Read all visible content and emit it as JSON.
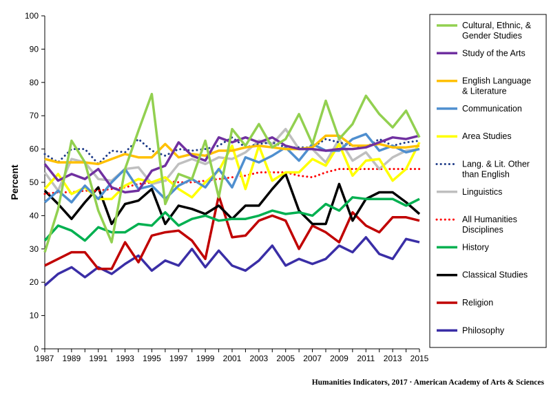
{
  "footer": "Humanities Indicators, 2017 · American Academy of Arts & Sciences",
  "chart_data": {
    "type": "line",
    "title": "",
    "xlabel": "",
    "ylabel": "Percent",
    "ylim": [
      0,
      100
    ],
    "yticks": [
      0,
      10,
      20,
      30,
      40,
      50,
      60,
      70,
      80,
      90,
      100
    ],
    "xtick_labels": [
      "1987",
      "1989",
      "1991",
      "1993",
      "1995",
      "1997",
      "1999",
      "2001",
      "2003",
      "2005",
      "2007",
      "2009",
      "2011",
      "2013",
      "2015"
    ],
    "grid": false,
    "legend_position": "right",
    "x": [
      1987,
      1988,
      1989,
      1990,
      1991,
      1992,
      1993,
      1994,
      1995,
      1996,
      1997,
      1998,
      1999,
      2000,
      2001,
      2002,
      2003,
      2004,
      2005,
      2006,
      2007,
      2008,
      2009,
      2010,
      2011,
      2012,
      2013,
      2014,
      2015
    ],
    "series": [
      {
        "name": "Cultural, Ethnic, & Gender Studies",
        "label_lines": [
          "Cultural, Ethnic, &",
          "Gender Studies"
        ],
        "color": "#92d050",
        "style": "solid",
        "values": [
          29,
          42,
          62.5,
          56,
          41.5,
          32,
          54,
          65.5,
          76.5,
          43.5,
          52.5,
          51,
          62.5,
          45.5,
          66,
          61,
          67.5,
          60.5,
          63,
          70.5,
          61.5,
          74.5,
          63,
          67.5,
          76,
          70.5,
          66.5,
          71.5,
          63.5
        ]
      },
      {
        "name": "Study of the Arts",
        "label_lines": [
          "Study of the Arts"
        ],
        "color": "#7030a0",
        "style": "solid",
        "values": [
          55.5,
          50.5,
          52.5,
          51,
          54,
          48.5,
          47,
          47.5,
          53.5,
          55,
          62,
          58,
          56.5,
          63.5,
          62,
          63.5,
          62,
          63.5,
          61,
          60,
          60,
          59.5,
          60,
          60,
          60.5,
          62,
          63.5,
          63,
          64
        ]
      },
      {
        "name": "English Language & Literature",
        "label_lines": [
          "English Language",
          "& Literature"
        ],
        "color": "#ffc000",
        "style": "solid",
        "values": [
          57,
          56,
          56,
          56,
          55.5,
          57,
          58.5,
          57.5,
          57.5,
          61.5,
          57.5,
          58.5,
          58,
          59.5,
          59.5,
          60.5,
          61,
          60.5,
          60,
          60,
          60.5,
          64,
          64,
          61,
          61,
          61.5,
          60.5,
          60.5,
          61
        ]
      },
      {
        "name": "Communication",
        "label_lines": [
          "Communication"
        ],
        "color": "#4f8fcf",
        "style": "solid",
        "values": [
          44,
          47.5,
          44,
          49,
          45,
          50,
          54,
          48,
          49,
          45,
          49,
          51,
          48.5,
          54,
          48.5,
          57.5,
          56,
          58,
          60.5,
          56.5,
          61.5,
          59.5,
          59.5,
          63,
          64.5,
          59.5,
          61,
          59,
          60
        ]
      },
      {
        "name": "Area Studies",
        "label_lines": [
          "Area Studies"
        ],
        "color": "#ffff00",
        "style": "solid",
        "values": [
          48,
          52.5,
          46.5,
          48.5,
          45,
          45,
          49,
          51,
          50,
          51.5,
          48,
          45.5,
          50,
          53.5,
          61,
          48,
          61,
          50.5,
          53,
          53,
          57,
          55,
          61.5,
          52,
          56.5,
          57,
          50.5,
          54,
          62
        ]
      },
      {
        "name": "Lang. & Lit. Other than English",
        "label_lines": [
          "Lang. & Lit. Other",
          "than English"
        ],
        "color": "#1f3c88",
        "style": "dotted",
        "values": [
          58.5,
          56,
          60,
          60,
          55.5,
          59.5,
          59,
          63,
          59.5,
          58,
          60,
          59.5,
          60,
          61,
          63.5,
          60.5,
          61.5,
          62,
          60.5,
          60.5,
          60.5,
          63,
          62,
          61,
          60.5,
          63,
          61,
          62,
          62.5
        ]
      },
      {
        "name": "Linguistics",
        "label_lines": [
          "Linguistics"
        ],
        "color": "#bfbfbf",
        "style": "solid",
        "values": [
          53,
          47.5,
          57,
          56,
          51,
          50.5,
          54,
          54.5,
          49.5,
          50.5,
          55.5,
          57,
          55.5,
          57.5,
          57,
          59,
          62.5,
          61.5,
          66,
          60,
          60,
          56,
          63,
          56.5,
          59,
          54,
          57.5,
          59.5,
          60
        ]
      },
      {
        "name": "All Humanities Disciplines",
        "label_lines": [
          "All Humanities",
          "Disciplines"
        ],
        "color": "#ff0000",
        "style": "dotted",
        "values": [
          46.5,
          47,
          47,
          47.5,
          47.5,
          48,
          48.5,
          49.5,
          50,
          50.5,
          50,
          50,
          50.5,
          51,
          51.5,
          52,
          53,
          53,
          53,
          52,
          51.5,
          53,
          54,
          54,
          54,
          54,
          54,
          54,
          54
        ]
      },
      {
        "name": "History",
        "label_lines": [
          "History"
        ],
        "color": "#00b050",
        "style": "solid",
        "values": [
          32.5,
          37,
          35.5,
          32.5,
          36.5,
          35,
          35,
          37.5,
          37,
          41,
          37,
          39,
          40,
          38.5,
          39,
          39,
          40,
          41.5,
          40.5,
          41,
          40,
          43.5,
          41.5,
          45.5,
          45,
          45,
          45,
          43,
          45
        ]
      },
      {
        "name": "Classical Studies",
        "label_lines": [
          "Classical Studies"
        ],
        "color": "#000000",
        "style": "solid",
        "values": [
          47.5,
          43.5,
          39,
          44,
          48.5,
          37.5,
          43.5,
          44.5,
          48,
          37.5,
          43,
          42,
          40.5,
          43,
          39,
          43,
          43,
          48,
          52.5,
          41.5,
          37.5,
          37.5,
          49.5,
          38.5,
          45,
          47,
          47,
          44,
          40.5
        ]
      },
      {
        "name": "Religion",
        "label_lines": [
          "Religion"
        ],
        "color": "#c00000",
        "style": "solid",
        "values": [
          25,
          27,
          29,
          29,
          24,
          24,
          32,
          26,
          34,
          35,
          35.5,
          32.5,
          27,
          46,
          33.5,
          34,
          38.5,
          40,
          38.5,
          30,
          37,
          35,
          32,
          41,
          37,
          35,
          39.5,
          39.5,
          38.5
        ]
      },
      {
        "name": "Philosophy",
        "label_lines": [
          "Philosophy"
        ],
        "color": "#3a2ea6",
        "style": "solid",
        "values": [
          19,
          22.5,
          24.5,
          21.5,
          24.5,
          22.5,
          25.5,
          28,
          23.5,
          26.5,
          25,
          30,
          24.5,
          29.5,
          25,
          23.5,
          26.5,
          31,
          25,
          27,
          25.5,
          27,
          31,
          29,
          33.5,
          28.5,
          27,
          33,
          32
        ]
      }
    ]
  }
}
